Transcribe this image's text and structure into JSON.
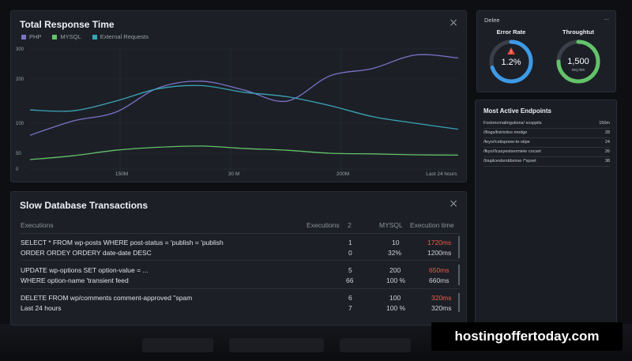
{
  "response_panel": {
    "title": "Total Response Time",
    "close_label": "×",
    "legend": [
      {
        "label": "PHP",
        "color": "#7b74c9"
      },
      {
        "label": "MYSQL",
        "color": "#63c36a"
      },
      {
        "label": "External Requests",
        "color": "#3aa4b8"
      }
    ],
    "y_ticks": [
      "300",
      "200",
      "100",
      "50",
      "0"
    ],
    "x_ticks": [
      "150M",
      "30 M",
      "200M",
      "Last 24 hours"
    ]
  },
  "chart_data": {
    "type": "line",
    "ylim": [
      0,
      300
    ],
    "x": [
      0,
      10,
      20,
      30,
      40,
      50,
      60,
      70,
      80,
      90,
      100
    ],
    "series": [
      {
        "name": "PHP",
        "color": "#7b74c9",
        "values": [
          80,
          105,
          125,
          180,
          195,
          175,
          150,
          210,
          235,
          280,
          270
        ]
      },
      {
        "name": "MYSQL",
        "color": "#63c36a",
        "values": [
          30,
          42,
          55,
          60,
          62,
          58,
          55,
          50,
          48,
          45,
          44
        ]
      },
      {
        "name": "External Requests",
        "color": "#3aa4b8",
        "values": [
          130,
          128,
          150,
          178,
          185,
          170,
          160,
          140,
          115,
          100,
          90
        ]
      }
    ]
  },
  "db_panel": {
    "title": "Slow Database Transactions",
    "close_label": "×",
    "headers": {
      "executions_left": "Executions",
      "executions": "Executions",
      "two": "2",
      "mysql": "MYSQL",
      "exec_time": "Execution time"
    },
    "rows": [
      {
        "sql1": "SELECT * FROM wp-posts WHERE post-status = 'publish = 'publish",
        "sql2": "ORDER ORDEY ORDERY date-date DESC",
        "c1a": "1",
        "c1b": "0",
        "m_a": "10",
        "m_b": "32%",
        "t_a": "1720ms",
        "t_b": "1200ms"
      },
      {
        "sql1": "UPDATE wp-options SET option-value = ...",
        "sql2": "WHERE option-name 'transient feed",
        "c1a": "5",
        "c1b": "66",
        "m_a": "200",
        "m_b": "100 %",
        "t_a": "650ms",
        "t_b": "660ms"
      },
      {
        "sql1": "DELETE FROM wp/comments comment-approved ''spam",
        "sql2": "Last 24 hours",
        "c1a": "6",
        "c1b": "7",
        "m_a": "100",
        "m_b": "100 %",
        "t_a": "320ms",
        "t_b": "320ms"
      }
    ]
  },
  "gauge_panel": {
    "title": "Delee",
    "more_label": "...",
    "error": {
      "label": "Error Rate",
      "value": "1.2%",
      "fraction": 0.7,
      "color": "#3d9ae6"
    },
    "throughput": {
      "label": "Throughtut",
      "value": "1,500",
      "sub": "req min",
      "fraction": 0.75,
      "color": "#63c36a"
    }
  },
  "endpoints": {
    "title": "Most Active Endpoints",
    "rows": [
      {
        "path": "Fockmcmatingutions/ ecsppits",
        "value": "150m"
      },
      {
        "path": "//llogs/listrictios modge",
        "value": "28"
      },
      {
        "path": "/feyo//cstispowe-le-stipe",
        "value": "24"
      },
      {
        "path": "/fkyo//lcasyestsermieie cocset",
        "value": "26"
      },
      {
        "path": "/biuplcestsrstdsmse /*xpset",
        "value": "38"
      }
    ]
  },
  "watermark": {
    "text": "hostingoffertoday.com"
  }
}
